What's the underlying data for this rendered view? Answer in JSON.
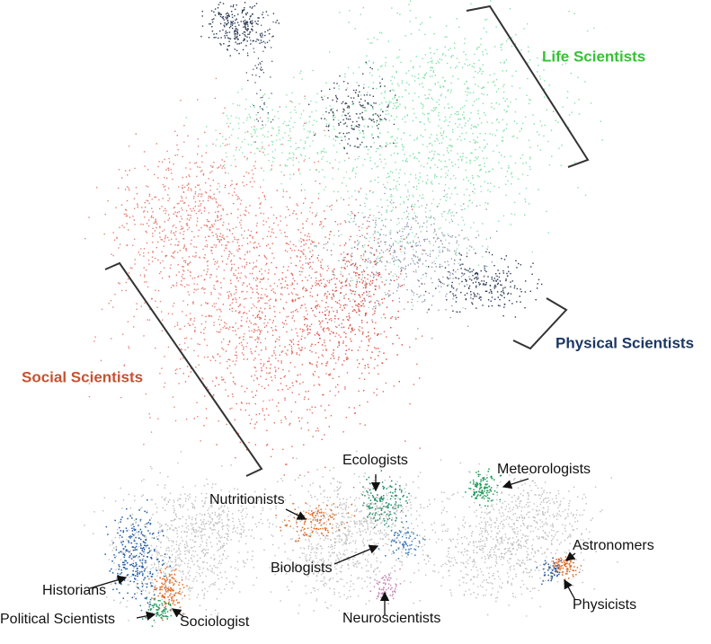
{
  "main_labels": [
    "Life Scientists",
    "Physical Scientists",
    "Social Scientists"
  ],
  "panel_labels": [
    "Historians",
    "Political Scientists",
    "Sociologist",
    "Nutritionists",
    "Ecologists",
    "Biologists",
    "Neuroscientists",
    "Meteorologists",
    "Astronomers",
    "Physicists"
  ]
}
